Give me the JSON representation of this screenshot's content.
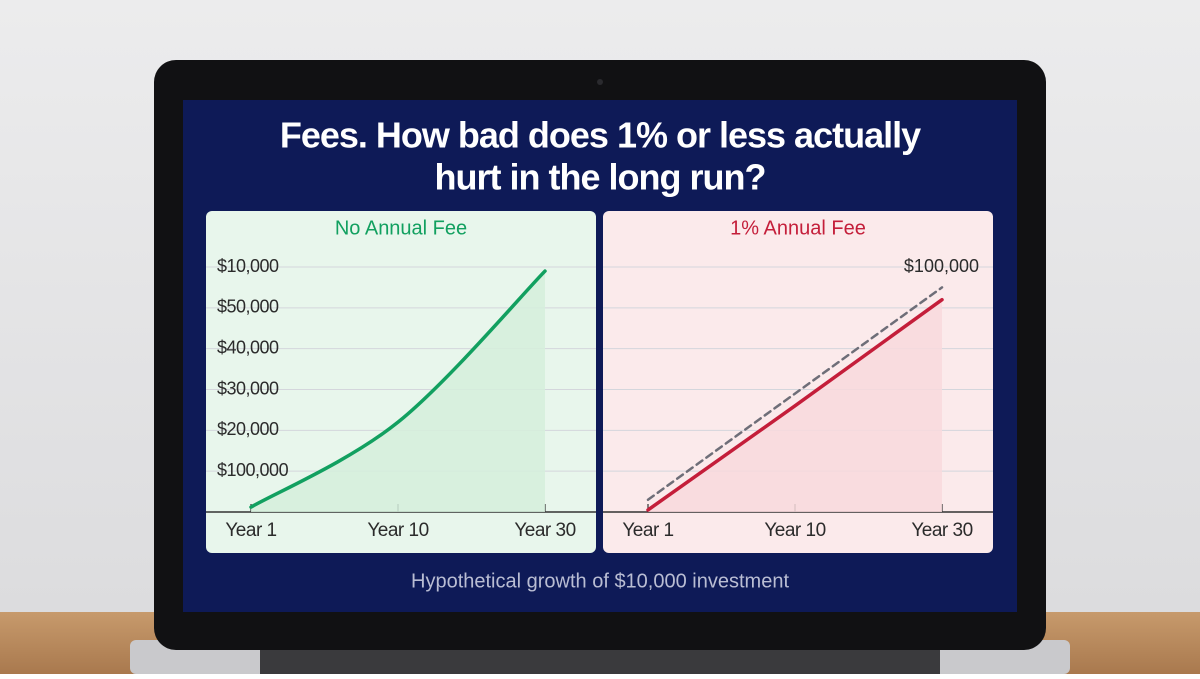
{
  "header": {
    "title_lines": [
      "Fees. How bad does 1% or less actually",
      "hurt in the long run?"
    ]
  },
  "footer": {
    "note": "Hypothetical growth of $10,000 investment"
  },
  "chart_data": [
    {
      "type": "line",
      "title": "No Annual Fee",
      "categories": [
        "Year 1",
        "Year 10",
        "Year 30"
      ],
      "ylim": [
        0,
        60000
      ],
      "y_labels": [
        "$10,000",
        "$50,000",
        "$40,000",
        "$30,000",
        "$20,000",
        "$100,000"
      ],
      "grid": true,
      "smooth": true,
      "series": [
        {
          "color": "#12a060",
          "fill": "#d5efdc",
          "values": [
            1200,
            22000,
            59000
          ]
        }
      ]
    },
    {
      "type": "line",
      "title": "1% Annual Fee",
      "categories": [
        "Year 1",
        "Year 10",
        "Year 30"
      ],
      "ylim": [
        0,
        60000
      ],
      "annotation": "$100,000",
      "grid": true,
      "smooth": false,
      "series": [
        {
          "color": "#c41e3a",
          "fill": "#f8d9dd",
          "values": [
            500,
            26000,
            52000
          ]
        },
        {
          "color": "#6e6e78",
          "dashed": true,
          "values": [
            3000,
            29000,
            55000
          ]
        }
      ]
    }
  ]
}
